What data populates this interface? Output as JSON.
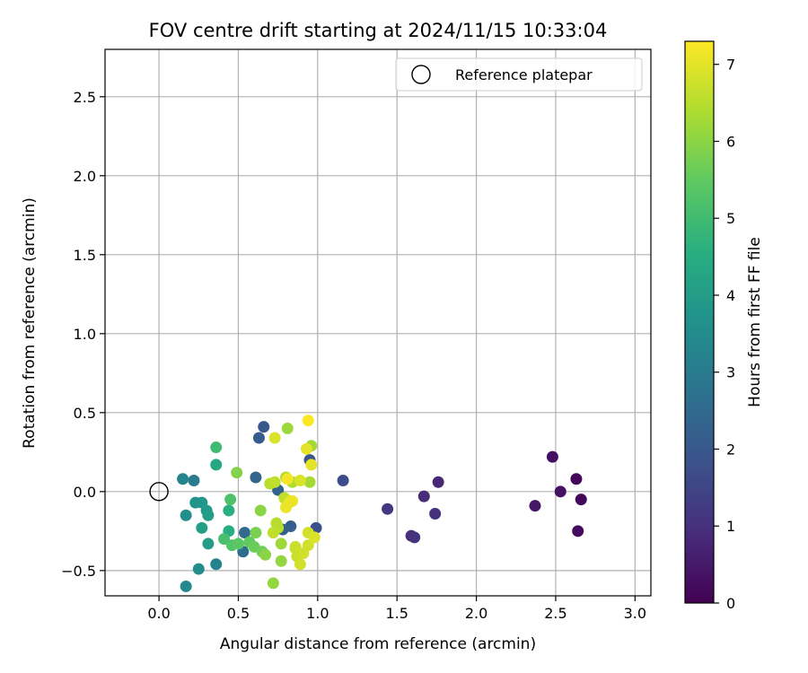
{
  "chart_data": {
    "type": "scatter",
    "title": "FOV centre drift starting at 2024/11/15 10:33:04",
    "xlabel": "Angular distance from reference (arcmin)",
    "ylabel": "Rotation from reference (arcmin)",
    "xlim": [
      -0.34,
      3.1
    ],
    "ylim": [
      -0.66,
      2.8
    ],
    "xticks": [
      0.0,
      0.5,
      1.0,
      1.5,
      2.0,
      2.5,
      3.0
    ],
    "xtick_labels": [
      "0.0",
      "0.5",
      "1.0",
      "1.5",
      "2.0",
      "2.5",
      "3.0"
    ],
    "yticks": [
      -0.5,
      0.0,
      0.5,
      1.0,
      1.5,
      2.0,
      2.5
    ],
    "ytick_labels": [
      "−0.5",
      "0.0",
      "0.5",
      "1.0",
      "1.5",
      "2.0",
      "2.5"
    ],
    "grid": true,
    "legend": {
      "placement": "top-right",
      "entries": [
        {
          "label": "Reference platepar",
          "marker": "open-circle"
        }
      ]
    },
    "reference_point": {
      "x": 0.0,
      "y": 0.0
    },
    "colorbar": {
      "label": "Hours from first FF file",
      "colormap": "viridis",
      "range": [
        0,
        7.3
      ],
      "ticks": [
        0,
        1,
        2,
        3,
        4,
        5,
        6,
        7
      ]
    },
    "points": [
      {
        "x": 2.63,
        "y": 0.08,
        "c": 0.1
      },
      {
        "x": 2.66,
        "y": -0.05,
        "c": 0.15
      },
      {
        "x": 2.64,
        "y": -0.25,
        "c": 0.2
      },
      {
        "x": 2.48,
        "y": 0.22,
        "c": 0.3
      },
      {
        "x": 2.53,
        "y": 0.0,
        "c": 0.35
      },
      {
        "x": 2.37,
        "y": -0.09,
        "c": 0.45
      },
      {
        "x": 1.76,
        "y": 0.06,
        "c": 0.8
      },
      {
        "x": 1.67,
        "y": -0.03,
        "c": 0.9
      },
      {
        "x": 1.74,
        "y": -0.14,
        "c": 1.0
      },
      {
        "x": 1.59,
        "y": -0.28,
        "c": 0.95
      },
      {
        "x": 1.61,
        "y": -0.29,
        "c": 1.05
      },
      {
        "x": 1.44,
        "y": -0.11,
        "c": 1.15
      },
      {
        "x": 1.16,
        "y": 0.07,
        "c": 1.7
      },
      {
        "x": 0.99,
        "y": -0.23,
        "c": 1.8
      },
      {
        "x": 0.95,
        "y": 0.2,
        "c": 1.9
      },
      {
        "x": 0.66,
        "y": 0.41,
        "c": 2.0
      },
      {
        "x": 0.63,
        "y": 0.34,
        "c": 2.1
      },
      {
        "x": 0.83,
        "y": -0.22,
        "c": 2.2
      },
      {
        "x": 0.75,
        "y": 0.01,
        "c": 2.3
      },
      {
        "x": 0.78,
        "y": -0.24,
        "c": 2.25
      },
      {
        "x": 0.61,
        "y": 0.09,
        "c": 2.4
      },
      {
        "x": 0.54,
        "y": -0.26,
        "c": 2.5
      },
      {
        "x": 0.53,
        "y": -0.38,
        "c": 2.6
      },
      {
        "x": 0.22,
        "y": 0.07,
        "c": 3.0
      },
      {
        "x": 0.15,
        "y": 0.08,
        "c": 3.3
      },
      {
        "x": 0.36,
        "y": -0.46,
        "c": 3.2
      },
      {
        "x": 0.25,
        "y": -0.49,
        "c": 3.5
      },
      {
        "x": 0.17,
        "y": -0.6,
        "c": 3.4
      },
      {
        "x": 0.17,
        "y": -0.15,
        "c": 3.6
      },
      {
        "x": 0.23,
        "y": -0.07,
        "c": 3.7
      },
      {
        "x": 0.27,
        "y": -0.07,
        "c": 3.8
      },
      {
        "x": 0.3,
        "y": -0.12,
        "c": 3.9
      },
      {
        "x": 0.31,
        "y": -0.15,
        "c": 4.0
      },
      {
        "x": 0.27,
        "y": -0.23,
        "c": 4.1
      },
      {
        "x": 0.31,
        "y": -0.33,
        "c": 4.0
      },
      {
        "x": 0.36,
        "y": 0.17,
        "c": 4.3
      },
      {
        "x": 0.44,
        "y": -0.25,
        "c": 4.5
      },
      {
        "x": 0.44,
        "y": -0.12,
        "c": 4.6
      },
      {
        "x": 0.36,
        "y": 0.28,
        "c": 5.0
      },
      {
        "x": 0.41,
        "y": -0.3,
        "c": 5.1
      },
      {
        "x": 0.45,
        "y": -0.05,
        "c": 5.2
      },
      {
        "x": 0.46,
        "y": -0.34,
        "c": 5.3
      },
      {
        "x": 0.5,
        "y": -0.33,
        "c": 5.4
      },
      {
        "x": 0.57,
        "y": -0.32,
        "c": 5.5
      },
      {
        "x": 0.6,
        "y": -0.35,
        "c": 5.6
      },
      {
        "x": 0.65,
        "y": -0.38,
        "c": 5.7
      },
      {
        "x": 0.61,
        "y": -0.26,
        "c": 5.8
      },
      {
        "x": 0.49,
        "y": 0.12,
        "c": 5.9
      },
      {
        "x": 0.64,
        "y": -0.12,
        "c": 6.0
      },
      {
        "x": 0.67,
        "y": -0.4,
        "c": 6.0
      },
      {
        "x": 0.72,
        "y": -0.58,
        "c": 6.1
      },
      {
        "x": 0.77,
        "y": -0.44,
        "c": 6.1
      },
      {
        "x": 0.81,
        "y": 0.4,
        "c": 6.2
      },
      {
        "x": 0.77,
        "y": -0.33,
        "c": 6.2
      },
      {
        "x": 0.95,
        "y": 0.06,
        "c": 6.3
      },
      {
        "x": 0.96,
        "y": 0.29,
        "c": 6.3
      },
      {
        "x": 0.8,
        "y": 0.09,
        "c": 6.4
      },
      {
        "x": 0.84,
        "y": 0.06,
        "c": 6.4
      },
      {
        "x": 0.7,
        "y": 0.05,
        "c": 6.5
      },
      {
        "x": 0.74,
        "y": -0.2,
        "c": 6.5
      },
      {
        "x": 0.75,
        "y": -0.23,
        "c": 6.5
      },
      {
        "x": 0.72,
        "y": -0.26,
        "c": 6.6
      },
      {
        "x": 0.73,
        "y": 0.06,
        "c": 6.6
      },
      {
        "x": 0.79,
        "y": -0.04,
        "c": 6.6
      },
      {
        "x": 0.86,
        "y": -0.35,
        "c": 6.7
      },
      {
        "x": 0.87,
        "y": -0.41,
        "c": 6.7
      },
      {
        "x": 0.86,
        "y": -0.36,
        "c": 6.7
      },
      {
        "x": 0.89,
        "y": -0.46,
        "c": 6.8
      },
      {
        "x": 0.91,
        "y": -0.39,
        "c": 6.8
      },
      {
        "x": 0.94,
        "y": -0.34,
        "c": 6.8
      },
      {
        "x": 0.94,
        "y": -0.26,
        "c": 6.8
      },
      {
        "x": 0.98,
        "y": -0.29,
        "c": 6.9
      },
      {
        "x": 0.89,
        "y": 0.07,
        "c": 6.9
      },
      {
        "x": 0.93,
        "y": 0.27,
        "c": 7.0
      },
      {
        "x": 0.96,
        "y": 0.17,
        "c": 7.0
      },
      {
        "x": 0.73,
        "y": 0.34,
        "c": 6.9
      },
      {
        "x": 0.82,
        "y": -0.07,
        "c": 7.0
      },
      {
        "x": 0.8,
        "y": -0.1,
        "c": 7.1
      },
      {
        "x": 0.83,
        "y": -0.06,
        "c": 7.1
      },
      {
        "x": 0.84,
        "y": -0.06,
        "c": 7.1
      },
      {
        "x": 0.81,
        "y": 0.08,
        "c": 7.2
      },
      {
        "x": 0.94,
        "y": 0.45,
        "c": 7.3
      }
    ]
  }
}
